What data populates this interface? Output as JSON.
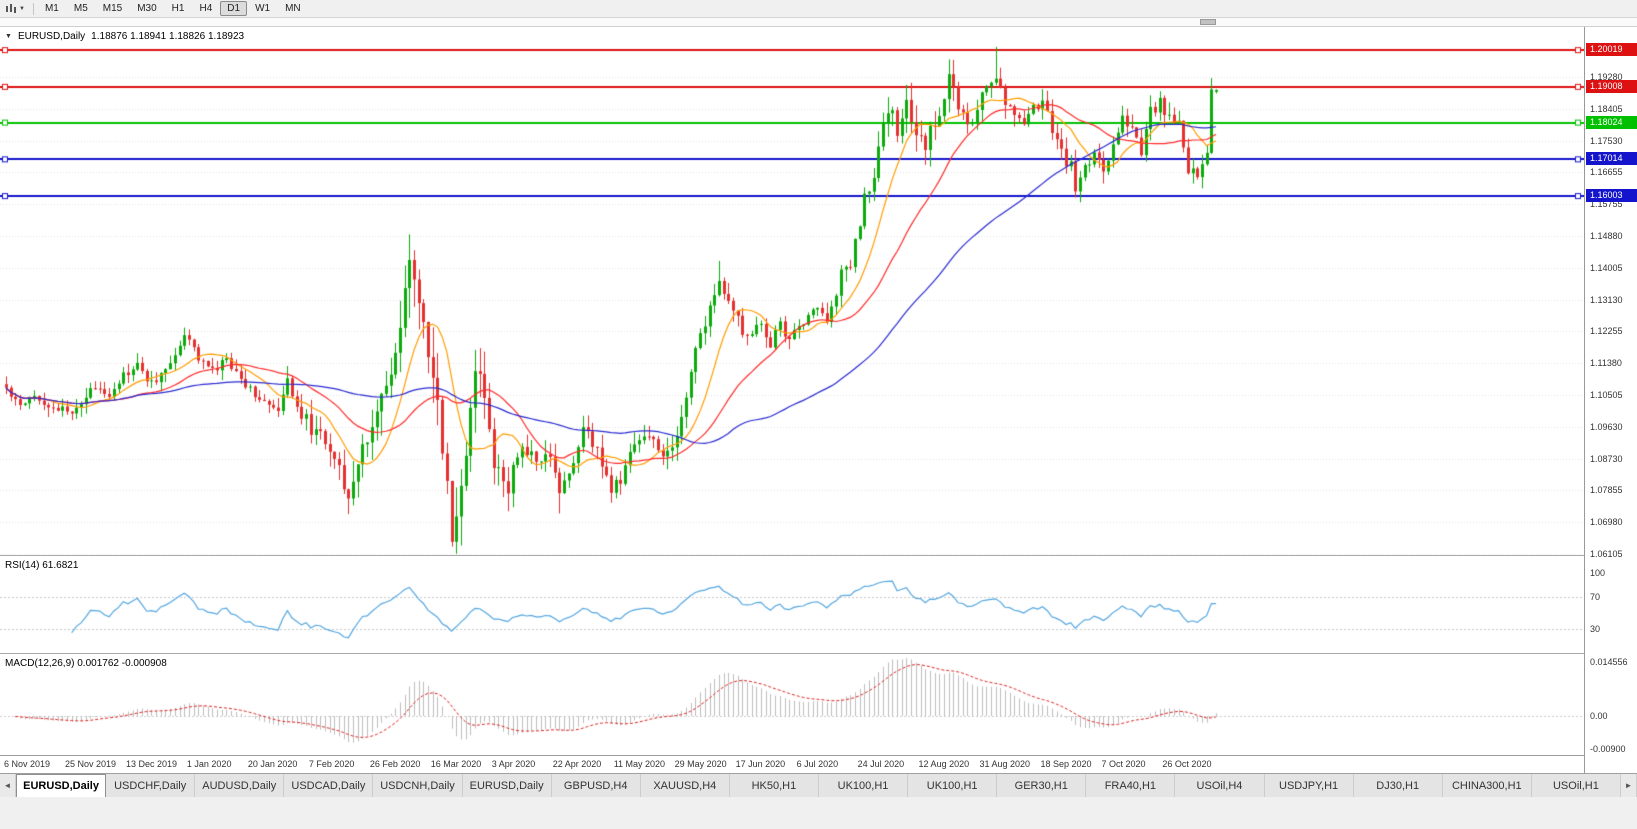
{
  "toolbar": {
    "chart_type_icon": "candlestick-chart",
    "dropdown_caret": "▼",
    "timeframes": [
      "M1",
      "M5",
      "M15",
      "M30",
      "H1",
      "H4",
      "D1",
      "W1",
      "MN"
    ],
    "active_timeframe": "D1"
  },
  "chart": {
    "header": {
      "collapse_icon": "▼",
      "title": "EURUSD,Daily",
      "open": "1.18876",
      "high": "1.18941",
      "low": "1.18826",
      "close": "1.18923"
    },
    "price_axis_labels": [
      "1.19280",
      "1.18405",
      "1.17530",
      "1.16655",
      "1.15755",
      "1.14880",
      "1.14005",
      "1.13130",
      "1.12255",
      "1.11380",
      "1.10505",
      "1.09630",
      "1.08730",
      "1.07855",
      "1.06980",
      "1.06105"
    ],
    "hlines": [
      {
        "price": "1.20019",
        "value": 1.20019,
        "color": "#dd1111"
      },
      {
        "price": "1.19008",
        "value": 1.19008,
        "color": "#dd1111"
      },
      {
        "price": "1.18024",
        "value": 1.18024,
        "color": "#00c000"
      },
      {
        "price": "1.17014",
        "value": 1.17014,
        "color": "#1414cc"
      },
      {
        "price": "1.16003",
        "value": 1.16003,
        "color": "#1414cc"
      }
    ],
    "date_labels": [
      "6 Nov 2019",
      "25 Nov 2019",
      "13 Dec 2019",
      "1 Jan 2020",
      "20 Jan 2020",
      "7 Feb 2020",
      "26 Feb 2020",
      "16 Mar 2020",
      "3 Apr 2020",
      "22 Apr 2020",
      "11 May 2020",
      "29 May 2020",
      "17 Jun 2020",
      "6 Jul 2020",
      "24 Jul 2020",
      "12 Aug 2020",
      "31 Aug 2020",
      "18 Sep 2020",
      "7 Oct 2020",
      "26 Oct 2020"
    ]
  },
  "rsi_panel": {
    "label": "RSI(14) 61.6821",
    "axis_labels": [
      "100",
      "70",
      "30"
    ],
    "level_values": [
      100,
      70,
      30
    ],
    "line_color": "#53a6e0"
  },
  "macd_panel": {
    "label": "MACD(12,26,9) 0.001762 -0.000908",
    "axis_labels": [
      "0.014556",
      "0.00",
      "-0.00900"
    ],
    "level_values": [
      0.014556,
      0,
      -0.009
    ]
  },
  "tabs": {
    "scroll_left": "◄",
    "scroll_right": "►",
    "active_index": 0,
    "items": [
      "EURUSD,Daily",
      "USDCHF,Daily",
      "AUDUSD,Daily",
      "USDCAD,Daily",
      "USDCNH,Daily",
      "EURUSD,Daily",
      "GBPUSD,H4",
      "XAUUSD,H4",
      "HK50,H1",
      "UK100,H1",
      "UK100,H1",
      "GER30,H1",
      "FRA40,H1",
      "USOil,H4",
      "USDJPY,H1",
      "DJ30,H1",
      "CHINA300,H1",
      "USOil,H1"
    ]
  },
  "chart_data": {
    "type": "candlestick",
    "symbol": "EURUSD",
    "timeframe": "Daily",
    "candle_count": 259,
    "candles_per_date_label": 13,
    "x_axis_dates": [
      "6 Nov 2019",
      "25 Nov 2019",
      "13 Dec 2019",
      "1 Jan 2020",
      "20 Jan 2020",
      "7 Feb 2020",
      "26 Feb 2020",
      "16 Mar 2020",
      "3 Apr 2020",
      "22 Apr 2020",
      "11 May 2020",
      "29 May 2020",
      "17 Jun 2020",
      "6 Jul 2020",
      "24 Jul 2020",
      "12 Aug 2020",
      "31 Aug 2020",
      "18 Sep 2020",
      "7 Oct 2020",
      "26 Oct 2020"
    ],
    "price_range_visible": [
      1.0605,
      1.2065
    ],
    "up_color": "#0caa0c",
    "down_color": "#e53030",
    "close_anchors": [
      [
        0,
        1.107
      ],
      [
        3,
        1.103
      ],
      [
        6,
        1.106
      ],
      [
        9,
        1.102
      ],
      [
        13,
        1.1005
      ],
      [
        16,
        1.103
      ],
      [
        19,
        1.1075
      ],
      [
        22,
        1.106
      ],
      [
        25,
        1.1105
      ],
      [
        28,
        1.113
      ],
      [
        31,
        1.1085
      ],
      [
        34,
        1.112
      ],
      [
        38,
        1.1215
      ],
      [
        41,
        1.116
      ],
      [
        44,
        1.1115
      ],
      [
        47,
        1.115
      ],
      [
        50,
        1.1095
      ],
      [
        53,
        1.106
      ],
      [
        56,
        1.102
      ],
      [
        58,
        1.1
      ],
      [
        60,
        1.109
      ],
      [
        63,
        1.1
      ],
      [
        66,
        1.0945
      ],
      [
        69,
        1.0915
      ],
      [
        73,
        1.079
      ],
      [
        75,
        1.085
      ],
      [
        78,
        1.099
      ],
      [
        80,
        1.103
      ],
      [
        83,
        1.1135
      ],
      [
        86,
        1.145
      ],
      [
        88,
        1.128
      ],
      [
        90,
        1.118
      ],
      [
        92,
        1.1005
      ],
      [
        95,
        1.068
      ],
      [
        97,
        1.077
      ],
      [
        100,
        1.114
      ],
      [
        102,
        1.103
      ],
      [
        104,
        1.086
      ],
      [
        107,
        1.08
      ],
      [
        110,
        1.0915
      ],
      [
        113,
        1.087
      ],
      [
        116,
        1.088
      ],
      [
        118,
        1.078
      ],
      [
        121,
        1.087
      ],
      [
        123,
        1.0955
      ],
      [
        126,
        1.0905
      ],
      [
        129,
        1.079
      ],
      [
        131,
        1.082
      ],
      [
        134,
        1.092
      ],
      [
        137,
        1.095
      ],
      [
        139,
        1.0895
      ],
      [
        142,
        1.09
      ],
      [
        144,
        1.099
      ],
      [
        146,
        1.1135
      ],
      [
        149,
        1.1255
      ],
      [
        152,
        1.1375
      ],
      [
        154,
        1.13
      ],
      [
        156,
        1.126
      ],
      [
        158,
        1.1205
      ],
      [
        161,
        1.1245
      ],
      [
        163,
        1.119
      ],
      [
        165,
        1.125
      ],
      [
        167,
        1.12
      ],
      [
        169,
        1.124
      ],
      [
        171,
        1.127
      ],
      [
        173,
        1.13
      ],
      [
        175,
        1.1255
      ],
      [
        178,
        1.1385
      ],
      [
        180,
        1.141
      ],
      [
        183,
        1.1595
      ],
      [
        185,
        1.165
      ],
      [
        188,
        1.1845
      ],
      [
        190,
        1.178
      ],
      [
        192,
        1.186
      ],
      [
        194,
        1.176
      ],
      [
        196,
        1.174
      ],
      [
        199,
        1.184
      ],
      [
        201,
        1.193
      ],
      [
        203,
        1.184
      ],
      [
        205,
        1.1795
      ],
      [
        207,
        1.184
      ],
      [
        209,
        1.1905
      ],
      [
        211,
        1.194
      ],
      [
        213,
        1.186
      ],
      [
        215,
        1.182
      ],
      [
        217,
        1.1815
      ],
      [
        219,
        1.1845
      ],
      [
        221,
        1.186
      ],
      [
        223,
        1.179
      ],
      [
        225,
        1.1715
      ],
      [
        227,
        1.168
      ],
      [
        228,
        1.163
      ],
      [
        230,
        1.167
      ],
      [
        232,
        1.1725
      ],
      [
        234,
        1.168
      ],
      [
        236,
        1.1735
      ],
      [
        238,
        1.1825
      ],
      [
        240,
        1.179
      ],
      [
        242,
        1.1715
      ],
      [
        244,
        1.183
      ],
      [
        246,
        1.186
      ],
      [
        248,
        1.181
      ],
      [
        250,
        1.179
      ],
      [
        252,
        1.1675
      ],
      [
        254,
        1.1645
      ],
      [
        256,
        1.1725
      ],
      [
        257,
        1.188
      ],
      [
        258,
        1.18923
      ]
    ],
    "volatility_anchors": [
      [
        0,
        0.005
      ],
      [
        55,
        0.005
      ],
      [
        65,
        0.0075
      ],
      [
        73,
        0.0105
      ],
      [
        85,
        0.015
      ],
      [
        95,
        0.0165
      ],
      [
        100,
        0.013
      ],
      [
        108,
        0.0085
      ],
      [
        120,
        0.007
      ],
      [
        135,
        0.006
      ],
      [
        145,
        0.007
      ],
      [
        158,
        0.0055
      ],
      [
        172,
        0.005
      ],
      [
        180,
        0.0065
      ],
      [
        190,
        0.009
      ],
      [
        200,
        0.008
      ],
      [
        212,
        0.0075
      ],
      [
        225,
        0.0065
      ],
      [
        240,
        0.006
      ],
      [
        252,
        0.0065
      ],
      [
        258,
        0.006
      ]
    ],
    "high_spikes": [
      [
        86,
        1.1495
      ],
      [
        152,
        1.1422
      ],
      [
        201,
        1.1966
      ],
      [
        211,
        1.2011
      ],
      [
        257,
        1.1905
      ]
    ],
    "low_spikes": [
      [
        73,
        1.0778
      ],
      [
        95,
        1.0636
      ],
      [
        118,
        1.0727
      ],
      [
        228,
        1.1612
      ]
    ],
    "last_candle": {
      "open": 1.18876,
      "high": 1.18941,
      "low": 1.18826,
      "close": 1.18923
    },
    "moving_averages": [
      {
        "period": 10,
        "color": "#ff9c00"
      },
      {
        "period": 25,
        "color": "#ff2a2a"
      },
      {
        "period": 60,
        "color": "#2a2ad0"
      }
    ],
    "horizontal_lines": [
      1.20019,
      1.19008,
      1.18024,
      1.17014,
      1.16003
    ],
    "rsi": {
      "period": 14,
      "current": 61.6821,
      "levels": [
        70,
        30
      ]
    },
    "macd": {
      "fast": 12,
      "slow": 26,
      "signal": 9,
      "current_main": 0.001762,
      "current_signal": -0.000908,
      "histogram_color": "#bdbdbd",
      "signal_color": "#dd2222"
    }
  }
}
